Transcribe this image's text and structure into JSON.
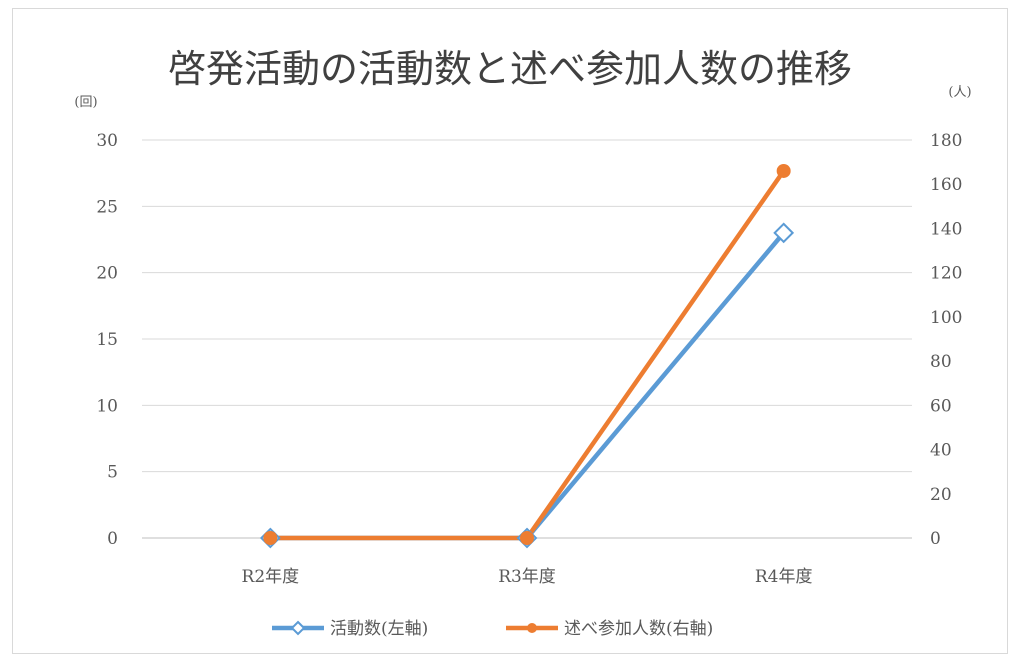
{
  "chart_data": {
    "type": "line",
    "title": "啓発活動の活動数と述べ参加人数の推移",
    "categories": [
      "R2年度",
      "R3年度",
      "R4年度"
    ],
    "series": [
      {
        "name": "活動数(左軸)",
        "axis": "left",
        "values": [
          0,
          0,
          23
        ],
        "color": "#5b9bd5",
        "marker": "open-diamond"
      },
      {
        "name": "述べ参加人数(右軸)",
        "axis": "right",
        "values": [
          0,
          0,
          166
        ],
        "color": "#ed7d31",
        "marker": "filled-circle"
      }
    ],
    "y_left": {
      "unit_label": "(回)",
      "ylim": [
        0,
        30
      ],
      "ticks": [
        "0",
        "5",
        "10",
        "15",
        "20",
        "25",
        "30"
      ]
    },
    "y_right": {
      "unit_label": "(人)",
      "ylim": [
        0,
        180
      ],
      "ticks": [
        "0",
        "20",
        "40",
        "60",
        "80",
        "100",
        "120",
        "140",
        "160",
        "180"
      ]
    },
    "grid": true,
    "legend_position": "bottom"
  }
}
